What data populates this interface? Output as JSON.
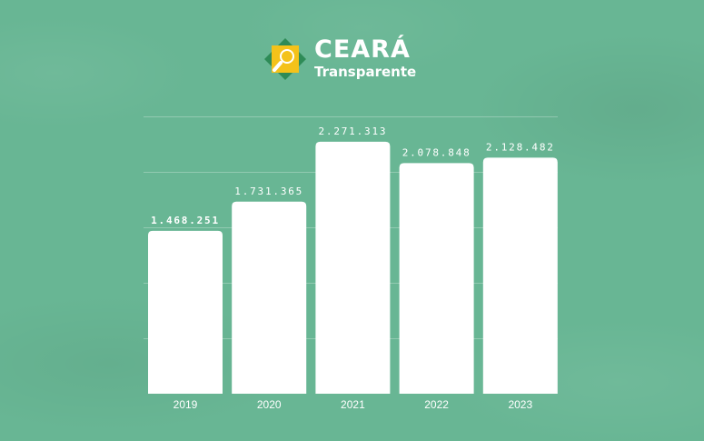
{
  "logo": {
    "title": "CEARÁ",
    "subtitle": "Transparente",
    "colors": {
      "green": "#2e8b57",
      "yellow": "#f4c21a",
      "white": "#ffffff"
    }
  },
  "colors": {
    "background": "#68b694",
    "bar": "#ffffff"
  },
  "chart_data": {
    "type": "bar",
    "categories": [
      "2019",
      "2020",
      "2021",
      "2022",
      "2023"
    ],
    "values": [
      1468251,
      1731365,
      2271313,
      2078848,
      2128482
    ],
    "value_labels": [
      "1.468.251",
      "1.731.365",
      "2.271.313",
      "2.078.848",
      "2.128.482"
    ],
    "title": "",
    "xlabel": "",
    "ylabel": "",
    "ylim": [
      0,
      2500000
    ],
    "grid": true,
    "legend": "none"
  }
}
